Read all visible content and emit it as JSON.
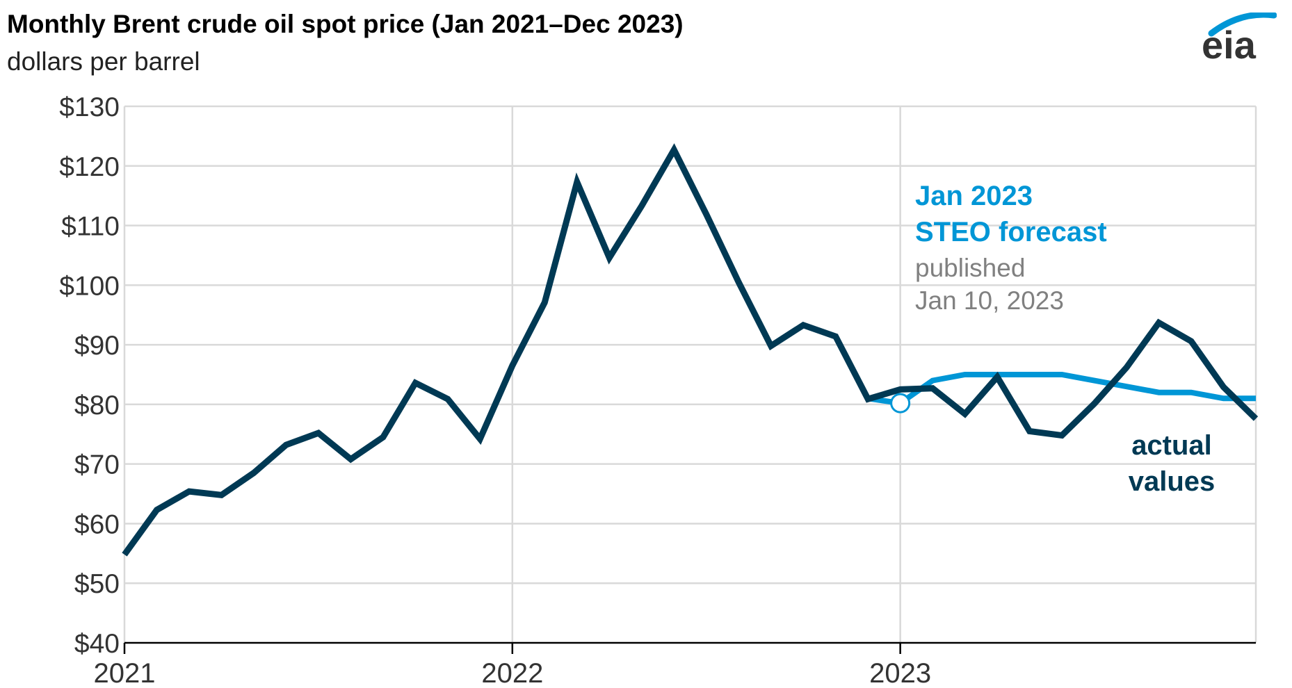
{
  "header": {
    "title": "Monthly Brent crude oil spot price (Jan 2021–Dec 2023)",
    "subtitle": "dollars per barrel",
    "logo_text": "eia"
  },
  "colors": {
    "actual": "#003954",
    "forecast": "#0096d6",
    "grid": "#d9d9d9",
    "published_text": "#808080"
  },
  "annotations": {
    "forecast_line1": "Jan 2023",
    "forecast_line2": "STEO forecast",
    "published_line1": "published",
    "published_line2": "Jan 10, 2023",
    "actual_line1": "actual",
    "actual_line2": "values"
  },
  "chart_data": {
    "type": "line",
    "title": "Monthly Brent crude oil spot price (Jan 2021–Dec 2023)",
    "ylabel": "dollars per barrel",
    "xlabel": "",
    "ylim": [
      40,
      130
    ],
    "y_ticks": [
      40,
      50,
      60,
      70,
      80,
      90,
      100,
      110,
      120,
      130
    ],
    "y_tick_labels": [
      "$40",
      "$50",
      "$60",
      "$70",
      "$80",
      "$90",
      "$100",
      "$110",
      "$120",
      "$130"
    ],
    "x_ticks": [
      "2021-01",
      "2022-01",
      "2023-01"
    ],
    "x_tick_labels": [
      "2021",
      "2022",
      "2023"
    ],
    "grid": true,
    "series": [
      {
        "name": "actual values",
        "x": [
          "2021-01",
          "2021-02",
          "2021-03",
          "2021-04",
          "2021-05",
          "2021-06",
          "2021-07",
          "2021-08",
          "2021-09",
          "2021-10",
          "2021-11",
          "2021-12",
          "2022-01",
          "2022-02",
          "2022-03",
          "2022-04",
          "2022-05",
          "2022-06",
          "2022-07",
          "2022-08",
          "2022-09",
          "2022-10",
          "2022-11",
          "2022-12",
          "2023-01",
          "2023-02",
          "2023-03",
          "2023-04",
          "2023-05",
          "2023-06",
          "2023-07",
          "2023-08",
          "2023-09",
          "2023-10",
          "2023-11",
          "2023-12"
        ],
        "values": [
          54.8,
          62.3,
          65.4,
          64.8,
          68.5,
          73.2,
          75.2,
          70.8,
          74.5,
          83.6,
          80.9,
          74.2,
          86.5,
          97.1,
          117.3,
          104.6,
          113.3,
          122.7,
          111.9,
          100.5,
          89.8,
          93.3,
          91.4,
          80.9,
          82.5,
          82.7,
          78.4,
          84.6,
          75.5,
          74.8,
          80.1,
          86.2,
          93.7,
          90.6,
          82.9,
          77.6
        ],
        "color": "#003954"
      },
      {
        "name": "Jan 2023 STEO forecast",
        "x": [
          "2022-12",
          "2023-01",
          "2023-02",
          "2023-03",
          "2023-04",
          "2023-05",
          "2023-06",
          "2023-07",
          "2023-08",
          "2023-09",
          "2023-10",
          "2023-11",
          "2023-12"
        ],
        "values": [
          81.0,
          80.2,
          84.0,
          85.0,
          85.0,
          85.0,
          85.0,
          84.0,
          83.0,
          82.0,
          82.0,
          81.0,
          81.0
        ],
        "color": "#0096d6"
      }
    ],
    "markers": [
      {
        "series": "Jan 2023 STEO forecast",
        "x": "2023-01",
        "value": 80.2,
        "style": "open-circle"
      }
    ]
  }
}
